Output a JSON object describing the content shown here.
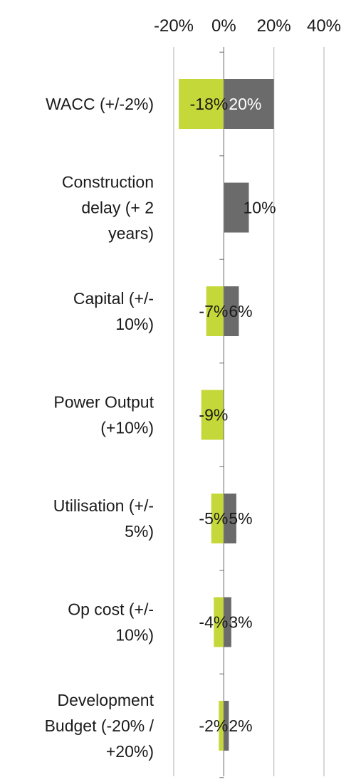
{
  "chart_data": {
    "type": "bar",
    "orientation": "horizontal",
    "title": "",
    "xlabel": "",
    "ylabel": "",
    "xlim": [
      -0.2,
      0.4
    ],
    "x_ticks": [
      -0.2,
      0,
      0.2,
      0.4
    ],
    "x_tick_labels": [
      "-20%",
      "0%",
      "20%",
      "40%"
    ],
    "axis_position": "top",
    "grid": true,
    "legend": "none",
    "categories": [
      "WACC (+/-2%)",
      "Construction delay (+ 2 years)",
      "Capital (+/- 10%)",
      "Power Output (+10%)",
      "Utilisation (+/- 5%)",
      "Op cost (+/- 10%)",
      "Development Budget (-20% / +20%)"
    ],
    "category_label_lines": [
      [
        "WACC (+/-2%)"
      ],
      [
        "Construction",
        "delay (+ 2",
        "years)"
      ],
      [
        "Capital (+/-",
        "10%)"
      ],
      [
        "Power Output",
        "(+10%)"
      ],
      [
        "Utilisation (+/-",
        "5%)"
      ],
      [
        "Op cost (+/-",
        "10%)"
      ],
      [
        "Development",
        "Budget (-20% /",
        "+20%)"
      ]
    ],
    "series": [
      {
        "color": "#c5d83a",
        "values": [
          -0.18,
          null,
          -0.07,
          -0.09,
          -0.05,
          -0.04,
          -0.02
        ],
        "labels": [
          "-18%",
          "",
          "-7%",
          "-9%",
          "-5%",
          "-4%",
          "-2%"
        ]
      },
      {
        "color": "#6b6b6b",
        "values": [
          0.2,
          0.1,
          0.06,
          null,
          0.05,
          0.03,
          0.02
        ],
        "labels": [
          "20%",
          "10%",
          "6%",
          "",
          "5%",
          "3%",
          "2%"
        ]
      }
    ]
  }
}
